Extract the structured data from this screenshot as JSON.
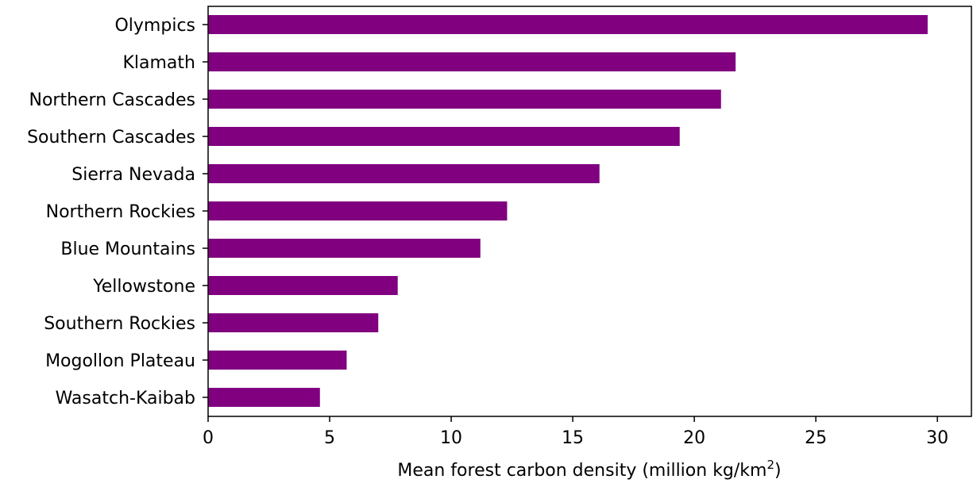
{
  "chart_data": {
    "type": "bar",
    "orientation": "horizontal",
    "title": "",
    "categories": [
      "Olympics",
      "Klamath",
      "Northern Cascades",
      "Southern Cascades",
      "Sierra Nevada",
      "Northern Rockies",
      "Blue Mountains",
      "Yellowstone",
      "Southern Rockies",
      "Mogollon Plateau",
      "Wasatch-Kaibab"
    ],
    "values": [
      29.6,
      21.7,
      21.1,
      19.4,
      16.1,
      12.3,
      11.2,
      7.8,
      7.0,
      5.7,
      4.6
    ],
    "xlabel": "Mean forest carbon density (million kg/km",
    "xlabel_superscript": "2",
    "xlabel_suffix": ")",
    "ylabel": "",
    "xlim": [
      0,
      31.4
    ],
    "xticks": [
      0,
      5,
      10,
      15,
      20,
      25,
      30
    ],
    "bar_color": "#800080",
    "grid": false,
    "legend": "none"
  }
}
